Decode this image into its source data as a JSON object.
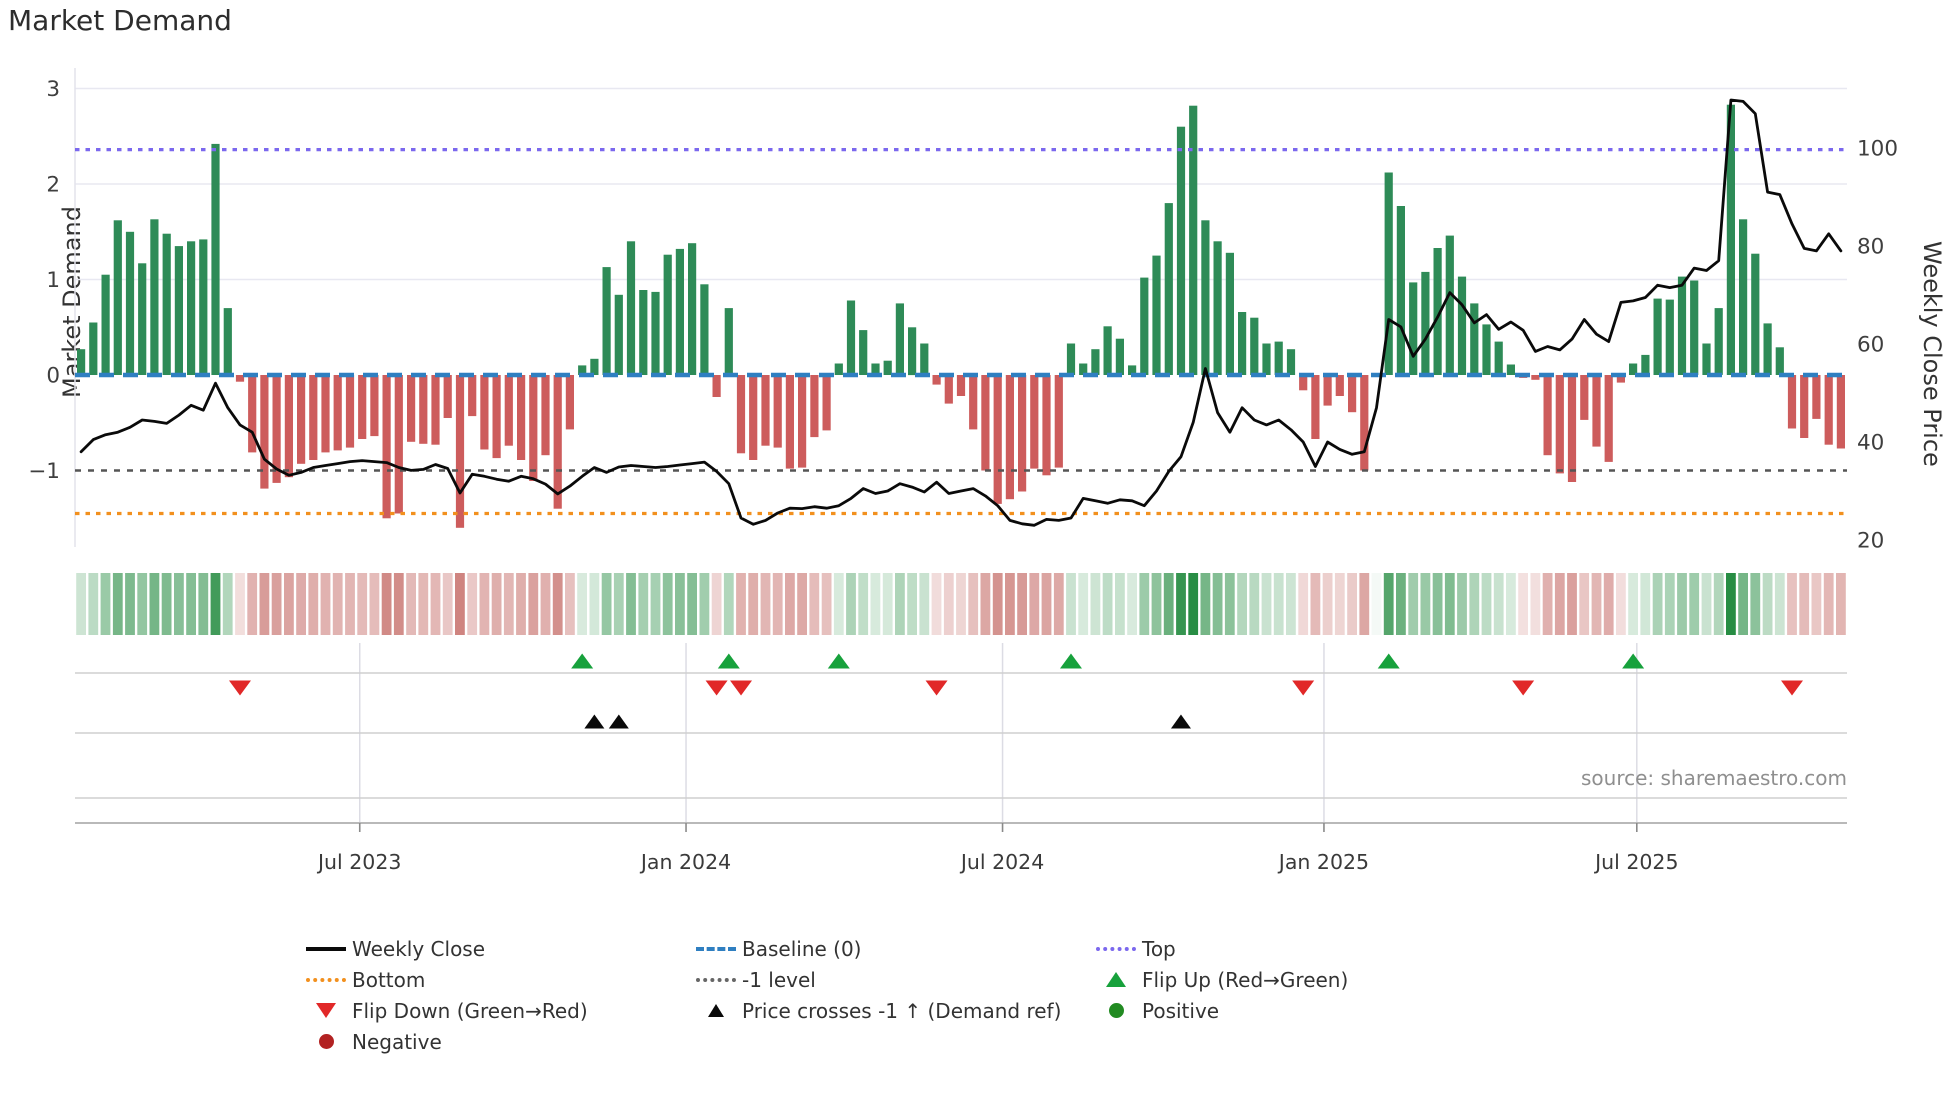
{
  "title": "Market Demand",
  "left_axis": {
    "label": "Market Demand",
    "tick_values": [
      3,
      2,
      1,
      0,
      -1
    ],
    "tick_labels": [
      "3",
      "2",
      "1",
      "0",
      "−1"
    ]
  },
  "right_axis": {
    "label": "Weekly Close Price",
    "tick_values": [
      100,
      80,
      60,
      40,
      20
    ],
    "tick_labels": [
      "100",
      "80",
      "60",
      "40",
      "20"
    ]
  },
  "source": "source: sharemaestro.com",
  "colors": {
    "bar_green": "#2e8b57",
    "bar_red": "#cd5c5c",
    "baseline": "#2f7fc1",
    "top_line": "#7b68ee",
    "bottom_line": "#f2901e",
    "minus_one_line": "#555555",
    "price_line": "#0a0a0a",
    "flip_up": "#17a13c",
    "flip_down": "#e12828",
    "price_cross": "#0a0a0a",
    "positive": "#228b22",
    "negative": "#b22222",
    "heat_green": "#268c42",
    "heat_red": "#b23b35",
    "grid": "#e8e8f1",
    "band_line": "#cfcfcf",
    "axis_line": "#b9b9b9"
  },
  "legend": {
    "columns": [
      [
        {
          "label": "Weekly Close",
          "marker": "line-black"
        },
        {
          "label": "Bottom",
          "marker": "dot-orange"
        },
        {
          "label": "Flip Down (Green→Red)",
          "marker": "tri-down-red"
        },
        {
          "label": "Negative",
          "marker": "circle-darkred"
        }
      ],
      [
        {
          "label": "Baseline (0)",
          "marker": "dash-blue"
        },
        {
          "label": "-1 level",
          "marker": "dot-gray"
        },
        {
          "label": "Price crosses -1 ↑ (Demand ref)",
          "marker": "tri-up-black"
        }
      ],
      [
        {
          "label": "Top",
          "marker": "dot-purple"
        },
        {
          "label": "Flip Up (Red→Green)",
          "marker": "tri-up-green"
        },
        {
          "label": "Positive",
          "marker": "circle-green"
        }
      ]
    ]
  },
  "chart_data": {
    "type": "bar+line",
    "n_weeks": 145,
    "x_ticks": {
      "labels": [
        "Jul 2023",
        "Jan 2024",
        "Jul 2024",
        "Jan 2025",
        "Jul 2025"
      ],
      "week_pos": [
        23.3,
        50.0,
        75.9,
        102.2,
        127.8
      ]
    },
    "demand_ylim": [
      -1.8,
      3.2
    ],
    "price_ylim": [
      18,
      116
    ],
    "baseline": 0,
    "top_level": 2.36,
    "bottom_level": -1.45,
    "minus_one_level": -1,
    "demand": [
      0.27,
      0.55,
      1.05,
      1.62,
      1.5,
      1.17,
      1.63,
      1.48,
      1.35,
      1.4,
      1.42,
      2.42,
      0.7,
      -0.07,
      -0.81,
      -1.19,
      -1.13,
      -1.07,
      -0.93,
      -0.89,
      -0.81,
      -0.79,
      -0.76,
      -0.67,
      -0.64,
      -1.5,
      -1.45,
      -0.7,
      -0.72,
      -0.73,
      -0.45,
      -1.6,
      -0.43,
      -0.78,
      -0.87,
      -0.74,
      -0.89,
      -1.11,
      -0.84,
      -1.4,
      -0.57,
      0.1,
      0.17,
      1.13,
      0.84,
      1.4,
      0.89,
      0.87,
      1.26,
      1.32,
      1.38,
      0.95,
      -0.23,
      0.7,
      -0.82,
      -0.89,
      -0.74,
      -0.76,
      -0.98,
      -0.97,
      -0.65,
      -0.58,
      0.12,
      0.78,
      0.47,
      0.12,
      0.15,
      0.75,
      0.5,
      0.33,
      -0.1,
      -0.3,
      -0.22,
      -0.57,
      -1.0,
      -1.35,
      -1.3,
      -1.22,
      -0.98,
      -1.05,
      -0.97,
      0.33,
      0.12,
      0.27,
      0.51,
      0.38,
      0.1,
      1.02,
      1.25,
      1.8,
      2.6,
      2.82,
      1.62,
      1.4,
      1.28,
      0.66,
      0.6,
      0.33,
      0.35,
      0.27,
      -0.16,
      -0.67,
      -0.32,
      -0.22,
      -0.39,
      -1.0,
      0.0,
      2.12,
      1.77,
      0.97,
      1.08,
      1.33,
      1.46,
      1.03,
      0.75,
      0.53,
      0.35,
      0.11,
      -0.03,
      -0.05,
      -0.84,
      -1.03,
      -1.12,
      -0.47,
      -0.75,
      -0.91,
      -0.08,
      0.12,
      0.21,
      0.8,
      0.79,
      1.03,
      0.99,
      0.33,
      0.7,
      2.83,
      1.63,
      1.27,
      0.54,
      0.29,
      -0.56,
      -0.66,
      -0.46,
      -0.73,
      -0.77
    ],
    "price": [
      38,
      40.5,
      41.5,
      42,
      43,
      44.5,
      44.2,
      43.8,
      45.5,
      47.5,
      46.5,
      52,
      47,
      43.5,
      42,
      36.5,
      34.5,
      33.2,
      33.8,
      34.8,
      35.2,
      35.6,
      36.0,
      36.2,
      36.0,
      35.8,
      34.8,
      34.2,
      34.4,
      35.4,
      34.6,
      29.6,
      33.4,
      33.0,
      32.4,
      32.0,
      33.0,
      32.5,
      31.4,
      29.4,
      31.0,
      33.0,
      34.8,
      33.8,
      34.9,
      35.2,
      35.0,
      34.8,
      35.0,
      35.3,
      35.6,
      35.9,
      34.0,
      31.5,
      24.5,
      23.2,
      24.0,
      25.5,
      26.5,
      26.4,
      26.8,
      26.5,
      27.0,
      28.5,
      30.5,
      29.5,
      30.0,
      31.5,
      30.8,
      29.8,
      31.8,
      29.5,
      30.0,
      30.5,
      29.0,
      27.0,
      24.0,
      23.3,
      23.0,
      24.2,
      24.0,
      24.5,
      28.5,
      28.0,
      27.5,
      28.2,
      28.0,
      27.0,
      30.0,
      34.0,
      37.0,
      44.0,
      55.0,
      46.0,
      42.0,
      47.0,
      44.5,
      43.5,
      44.5,
      42.5,
      40.0,
      35.0,
      40.0,
      38.5,
      37.5,
      38.0,
      47.0,
      65.0,
      63.5,
      57.5,
      61.0,
      65.5,
      70.5,
      68.0,
      64.3,
      66.0,
      63.0,
      64.5,
      62.8,
      58.5,
      59.5,
      58.8,
      61.0,
      65.0,
      62.0,
      60.5,
      68.5,
      68.8,
      69.5,
      72.0,
      71.5,
      72.0,
      75.5,
      75.0,
      77.0,
      109.8,
      109.5,
      107.0,
      91.0,
      90.5,
      84.5,
      79.5,
      79.0,
      82.5,
      79.0
    ],
    "flip_up_weeks": [
      41,
      53,
      62,
      81,
      107,
      127
    ],
    "flip_down_weeks": [
      13,
      52,
      54,
      70,
      100,
      118,
      140
    ],
    "price_cross_weeks": [
      42,
      44,
      90
    ]
  }
}
